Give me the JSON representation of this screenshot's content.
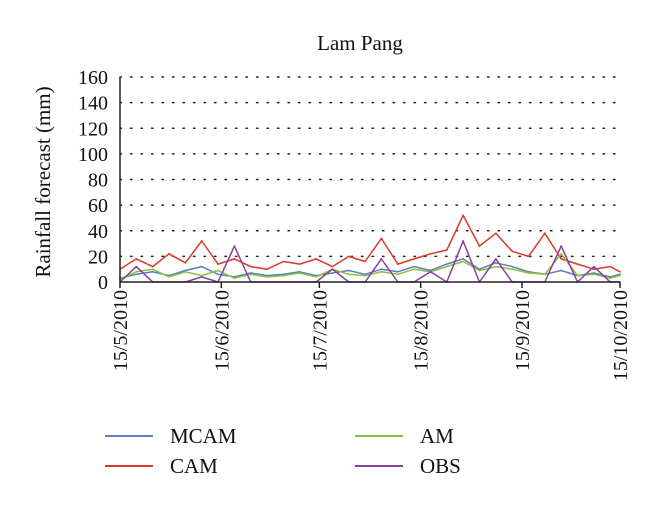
{
  "chart_data": {
    "type": "line",
    "title": "Lam Pang",
    "xlabel": "",
    "ylabel": "Rainfall forecast (mm)",
    "ylim": [
      0,
      160
    ],
    "yticks": [
      0,
      20,
      40,
      60,
      80,
      100,
      120,
      140,
      160
    ],
    "xlim": [
      "15/5/2010",
      "15/10/2010"
    ],
    "xticks": [
      "15/5/2010",
      "15/6/2010",
      "15/7/2010",
      "15/8/2010",
      "15/9/2010",
      "15/10/2010"
    ],
    "grid": "horizontal dotted",
    "legend_position": "bottom",
    "series": [
      {
        "name": "MCAM",
        "color": "#5b7fc0",
        "x": [
          "15/5/2010",
          "20/5/2010",
          "25/5/2010",
          "30/5/2010",
          "4/6/2010",
          "9/6/2010",
          "14/6/2010",
          "19/6/2010",
          "24/6/2010",
          "29/6/2010",
          "4/7/2010",
          "9/7/2010",
          "14/7/2010",
          "19/7/2010",
          "24/7/2010",
          "29/7/2010",
          "3/8/2010",
          "8/8/2010",
          "13/8/2010",
          "18/8/2010",
          "23/8/2010",
          "28/8/2010",
          "2/9/2010",
          "7/9/2010",
          "12/9/2010",
          "17/9/2010",
          "22/9/2010",
          "27/9/2010",
          "2/10/2010",
          "7/10/2010",
          "12/10/2010",
          "15/10/2010"
        ],
        "values": [
          3,
          6,
          8,
          5,
          9,
          12,
          6,
          4,
          7,
          5,
          6,
          8,
          5,
          7,
          9,
          6,
          10,
          8,
          12,
          9,
          14,
          18,
          10,
          15,
          12,
          8,
          6,
          9,
          5,
          7,
          4,
          6
        ]
      },
      {
        "name": "CAM",
        "color": "#d93a2b",
        "x": [
          "15/5/2010",
          "20/5/2010",
          "25/5/2010",
          "30/5/2010",
          "4/6/2010",
          "9/6/2010",
          "14/6/2010",
          "19/6/2010",
          "24/6/2010",
          "29/6/2010",
          "4/7/2010",
          "9/7/2010",
          "14/7/2010",
          "19/7/2010",
          "24/7/2010",
          "29/7/2010",
          "3/8/2010",
          "8/8/2010",
          "13/8/2010",
          "18/8/2010",
          "23/8/2010",
          "28/8/2010",
          "2/9/2010",
          "7/9/2010",
          "12/9/2010",
          "17/9/2010",
          "22/9/2010",
          "27/9/2010",
          "2/10/2010",
          "7/10/2010",
          "12/10/2010",
          "15/10/2010"
        ],
        "values": [
          10,
          18,
          12,
          22,
          15,
          32,
          14,
          18,
          12,
          10,
          16,
          14,
          18,
          12,
          20,
          16,
          34,
          14,
          18,
          22,
          25,
          52,
          28,
          38,
          24,
          20,
          38,
          18,
          14,
          10,
          12,
          8
        ]
      },
      {
        "name": "AM",
        "color": "#8bbf3e",
        "x": [
          "15/5/2010",
          "20/5/2010",
          "25/5/2010",
          "30/5/2010",
          "4/6/2010",
          "9/6/2010",
          "14/6/2010",
          "19/6/2010",
          "24/6/2010",
          "29/6/2010",
          "4/7/2010",
          "9/7/2010",
          "14/7/2010",
          "19/7/2010",
          "24/7/2010",
          "29/7/2010",
          "3/8/2010",
          "8/8/2010",
          "13/8/2010",
          "18/8/2010",
          "23/8/2010",
          "28/8/2010",
          "2/9/2010",
          "7/9/2010",
          "12/9/2010",
          "17/9/2010",
          "22/9/2010",
          "27/9/2010",
          "2/10/2010",
          "7/10/2010",
          "12/10/2010",
          "15/10/2010"
        ],
        "values": [
          2,
          8,
          10,
          4,
          8,
          5,
          9,
          3,
          6,
          4,
          5,
          7,
          4,
          10,
          6,
          5,
          8,
          6,
          10,
          8,
          12,
          16,
          9,
          12,
          10,
          7,
          6,
          22,
          5,
          6,
          3,
          5
        ]
      },
      {
        "name": "OBS",
        "color": "#8a3fa0",
        "x": [
          "15/5/2010",
          "20/5/2010",
          "25/5/2010",
          "30/5/2010",
          "4/6/2010",
          "9/6/2010",
          "14/6/2010",
          "19/6/2010",
          "24/6/2010",
          "29/6/2010",
          "4/7/2010",
          "9/7/2010",
          "14/7/2010",
          "19/7/2010",
          "24/7/2010",
          "29/7/2010",
          "3/8/2010",
          "8/8/2010",
          "13/8/2010",
          "18/8/2010",
          "23/8/2010",
          "28/8/2010",
          "2/9/2010",
          "7/9/2010",
          "12/9/2010",
          "17/9/2010",
          "22/9/2010",
          "27/9/2010",
          "2/10/2010",
          "7/10/2010",
          "12/10/2010",
          "15/10/2010"
        ],
        "values": [
          0,
          12,
          0,
          0,
          0,
          4,
          0,
          28,
          0,
          0,
          0,
          0,
          0,
          10,
          0,
          0,
          18,
          0,
          0,
          8,
          0,
          32,
          0,
          18,
          0,
          0,
          0,
          28,
          0,
          12,
          0,
          0
        ]
      }
    ]
  }
}
